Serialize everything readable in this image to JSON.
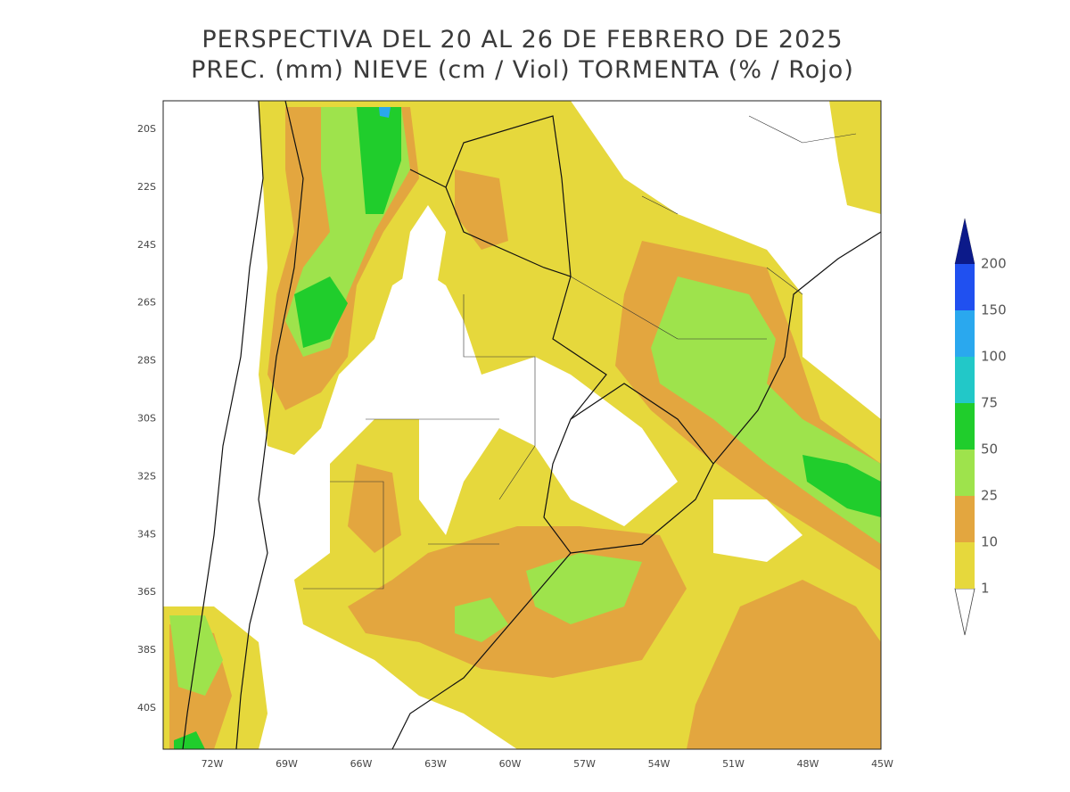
{
  "header": {
    "title": "PERSPECTIVA DEL 20 AL 26 DE FEBRERO DE 2025",
    "subtitle": "PREC. (mm) NIEVE (cm / Viol) TORMENTA (% / Rojo)"
  },
  "latitude_labels": [
    "20S",
    "22S",
    "24S",
    "26S",
    "28S",
    "30S",
    "32S",
    "34S",
    "36S",
    "38S",
    "40S"
  ],
  "longitude_labels": [
    "72W",
    "69W",
    "66W",
    "63W",
    "60W",
    "57W",
    "54W",
    "51W",
    "48W",
    "45W"
  ],
  "legend": {
    "items": [
      {
        "label": "1",
        "color": "#e6d83c"
      },
      {
        "label": "10",
        "color": "#e3a63f"
      },
      {
        "label": "25",
        "color": "#9ee34c"
      },
      {
        "label": "50",
        "color": "#20cd2c"
      },
      {
        "label": "75",
        "color": "#22c8c8"
      },
      {
        "label": "100",
        "color": "#2aa8ee"
      },
      {
        "label": "150",
        "color": "#2050f0"
      },
      {
        "label": "200",
        "color": "#0c1a8a"
      }
    ]
  }
}
